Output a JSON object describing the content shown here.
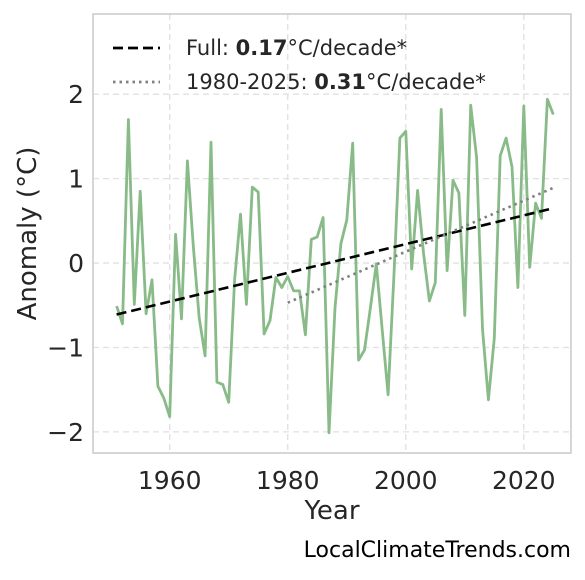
{
  "chart_data": {
    "type": "line",
    "xlabel": "Year",
    "ylabel": "Anomaly (°C)",
    "xlim": [
      1947,
      2028
    ],
    "ylim": [
      -2.25,
      2.95
    ],
    "xticks": [
      1960,
      1980,
      2000,
      2020
    ],
    "yticks": [
      -2,
      -1,
      0,
      1,
      2
    ],
    "ytick_labels": [
      "−2",
      "−1",
      "0",
      "1",
      "2"
    ],
    "grid": true,
    "legend_position": "top-left",
    "series": [
      {
        "style": "solid",
        "color": "#88bb88",
        "x": [
          1951,
          1952,
          1953,
          1954,
          1955,
          1956,
          1957,
          1958,
          1959,
          1960,
          1961,
          1962,
          1963,
          1964,
          1965,
          1966,
          1967,
          1968,
          1969,
          1970,
          1971,
          1972,
          1973,
          1974,
          1975,
          1976,
          1977,
          1978,
          1979,
          1980,
          1981,
          1982,
          1983,
          1984,
          1985,
          1986,
          1987,
          1988,
          1989,
          1990,
          1991,
          1992,
          1993,
          1994,
          1995,
          1996,
          1997,
          1998,
          1999,
          2000,
          2001,
          2002,
          2003,
          2004,
          2005,
          2006,
          2007,
          2008,
          2009,
          2010,
          2011,
          2012,
          2013,
          2014,
          2015,
          2016,
          2017,
          2018,
          2019,
          2020,
          2021,
          2022,
          2023,
          2024,
          2025
        ],
        "y": [
          -0.51,
          -0.72,
          1.7,
          -0.49,
          0.85,
          -0.6,
          -0.2,
          -1.46,
          -1.6,
          -1.82,
          0.34,
          -0.66,
          1.21,
          0.2,
          -0.65,
          -1.1,
          1.43,
          -1.41,
          -1.44,
          -1.65,
          -0.2,
          0.58,
          -0.49,
          0.9,
          0.84,
          -0.84,
          -0.68,
          -0.17,
          -0.29,
          -0.16,
          -0.33,
          -0.33,
          -0.85,
          0.28,
          0.31,
          0.54,
          -2.01,
          -0.53,
          0.23,
          0.51,
          1.42,
          -1.15,
          -1.03,
          -0.53,
          -0.01,
          -0.79,
          -1.56,
          -0.13,
          1.48,
          1.56,
          -0.07,
          0.86,
          0.12,
          -0.45,
          -0.23,
          1.82,
          -0.09,
          0.98,
          0.83,
          -0.62,
          1.87,
          1.25,
          -0.78,
          -1.62,
          -0.89,
          1.27,
          1.48,
          1.14,
          -0.29,
          1.86,
          -0.05,
          0.71,
          0.53,
          1.94,
          1.76
        ]
      },
      {
        "style": "dashed",
        "color": "#000000",
        "x": [
          1951,
          2025
        ],
        "y": [
          -0.61,
          0.65
        ]
      },
      {
        "style": "dotted",
        "color": "#808080",
        "x": [
          1980,
          2025
        ],
        "y": [
          -0.47,
          0.89
        ]
      }
    ],
    "legend": [
      {
        "prefix": "Full: ",
        "rate": "0.17",
        "suffix": "°C/decade*",
        "style": "dashed",
        "color": "#000000"
      },
      {
        "prefix": "1980-2025: ",
        "rate": "0.31",
        "suffix": "°C/decade*",
        "style": "dotted",
        "color": "#808080"
      }
    ]
  },
  "credit": "LocalClimateTrends.com"
}
